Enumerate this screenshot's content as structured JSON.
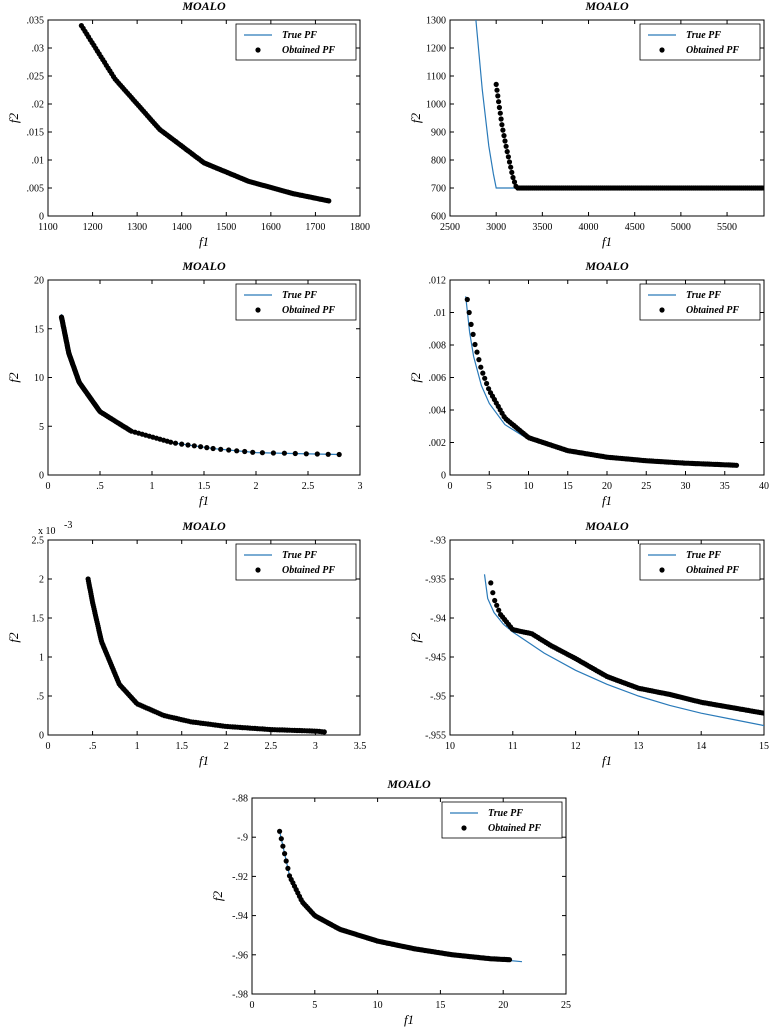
{
  "figure": {
    "caption": ""
  },
  "colors": {
    "true_pf": "#2a7ab9",
    "obtained_pf": "#000000",
    "axis": "#000000"
  },
  "chart_data": [
    {
      "type": "line+scatter",
      "title": "MOALO",
      "xlabel": "f1",
      "ylabel": "f2",
      "xlim": [
        1100,
        1800
      ],
      "ylim": [
        0,
        0.035
      ],
      "xticks": [
        1100,
        1200,
        1300,
        1400,
        1500,
        1600,
        1700,
        1800
      ],
      "yticks": [
        0,
        0.005,
        0.01,
        0.015,
        0.02,
        0.025,
        0.03,
        0.035
      ],
      "legend": [
        "True PF",
        "Obtained PF"
      ],
      "true_pf": {
        "name": "True PF",
        "x": [
          1175,
          1250,
          1350,
          1450,
          1550,
          1650,
          1730
        ],
        "y": [
          0.034,
          0.0245,
          0.0155,
          0.0095,
          0.0062,
          0.004,
          0.0027
        ]
      },
      "obtained_pf": {
        "name": "Obtained PF",
        "x": [
          1175,
          1250,
          1350,
          1450,
          1550,
          1650,
          1730
        ],
        "y": [
          0.034,
          0.0245,
          0.0155,
          0.0095,
          0.0062,
          0.004,
          0.0027
        ]
      }
    },
    {
      "type": "line+scatter",
      "title": "MOALO",
      "xlabel": "f1",
      "ylabel": "f2",
      "xlim": [
        2500,
        5900
      ],
      "ylim": [
        600,
        1300
      ],
      "xticks": [
        2500,
        3000,
        3500,
        4000,
        4500,
        5000,
        5500
      ],
      "yticks": [
        600,
        700,
        800,
        900,
        1000,
        1100,
        1200,
        1300
      ],
      "legend": [
        "True PF",
        "Obtained PF"
      ],
      "true_pf": {
        "name": "True PF",
        "x": [
          2780,
          2850,
          2920,
          2970,
          3000,
          3200
        ],
        "y": [
          1300,
          1050,
          850,
          750,
          700,
          700
        ]
      },
      "obtained_pf": {
        "name": "Obtained PF",
        "x": [
          3000,
          3030,
          3060,
          3100,
          3140,
          3180,
          3220,
          3600,
          4200,
          4800,
          5400,
          5900
        ],
        "y": [
          1070,
          1000,
          930,
          860,
          800,
          740,
          700,
          700,
          700,
          700,
          700,
          700
        ]
      }
    },
    {
      "type": "line+scatter",
      "title": "MOALO",
      "xlabel": "f1",
      "ylabel": "f2",
      "xlim": [
        0,
        3
      ],
      "ylim": [
        0,
        20
      ],
      "xticks": [
        0,
        0.5,
        1,
        1.5,
        2,
        2.5,
        3
      ],
      "yticks": [
        0,
        5,
        10,
        15,
        20
      ],
      "legend": [
        "True PF",
        "Obtained PF"
      ],
      "true_pf": {
        "name": "True PF",
        "x": [
          0.13,
          0.2,
          0.3,
          0.5,
          0.8,
          1.2,
          1.6,
          2.0,
          2.4,
          2.8
        ],
        "y": [
          16.5,
          12.5,
          9.5,
          6.5,
          4.5,
          3.3,
          2.7,
          2.3,
          2.2,
          2.1
        ]
      },
      "obtained_pf": {
        "name": "Obtained PF",
        "x": [
          0.13,
          0.2,
          0.3,
          0.5,
          0.8,
          1.2,
          1.6,
          2.0,
          2.4,
          2.8
        ],
        "y": [
          16.2,
          12.5,
          9.5,
          6.5,
          4.5,
          3.3,
          2.7,
          2.3,
          2.2,
          2.1
        ]
      }
    },
    {
      "type": "line+scatter",
      "title": "MOALO",
      "xlabel": "f1",
      "ylabel": "f2",
      "xlim": [
        0,
        40
      ],
      "ylim": [
        0,
        0.012
      ],
      "xticks": [
        0,
        5,
        10,
        15,
        20,
        25,
        30,
        35,
        40
      ],
      "yticks": [
        0,
        0.002,
        0.004,
        0.006,
        0.008,
        0.01,
        0.012
      ],
      "legend": [
        "True PF",
        "Obtained PF"
      ],
      "true_pf": {
        "name": "True PF",
        "x": [
          2,
          2.5,
          3,
          4,
          5,
          7,
          10,
          15,
          20,
          25,
          30,
          36.5
        ],
        "y": [
          0.011,
          0.0088,
          0.0073,
          0.0055,
          0.0044,
          0.0031,
          0.0022,
          0.0015,
          0.0011,
          0.00088,
          0.00073,
          0.0006
        ]
      },
      "obtained_pf": {
        "name": "Obtained PF",
        "x": [
          2.2,
          2.6,
          3.2,
          4,
          5,
          7,
          10,
          15,
          20,
          25,
          30,
          36.5
        ],
        "y": [
          0.0108,
          0.0095,
          0.008,
          0.0065,
          0.0052,
          0.0035,
          0.0023,
          0.0015,
          0.0011,
          0.00088,
          0.00073,
          0.0006
        ]
      }
    },
    {
      "type": "line+scatter",
      "title": "MOALO",
      "xlabel": "f1",
      "ylabel": "f2",
      "y_multiplier": "x 10",
      "y_exponent": "-3",
      "xlim": [
        0,
        3.5
      ],
      "ylim": [
        0,
        2.5
      ],
      "xticks": [
        0,
        0.5,
        1,
        1.5,
        2,
        2.5,
        3,
        3.5
      ],
      "yticks": [
        0,
        0.5,
        1,
        1.5,
        2,
        2.5
      ],
      "legend": [
        "True PF",
        "Obtained PF"
      ],
      "true_pf": {
        "name": "True PF",
        "x": [
          0.45,
          0.5,
          0.6,
          0.8,
          1.0,
          1.3,
          1.6,
          2.0,
          2.5,
          3.0
        ],
        "y": [
          2.0,
          1.7,
          1.2,
          0.65,
          0.4,
          0.25,
          0.17,
          0.11,
          0.07,
          0.04
        ]
      },
      "obtained_pf": {
        "name": "Obtained PF",
        "x": [
          0.45,
          0.5,
          0.6,
          0.8,
          1.0,
          1.3,
          1.6,
          2.0,
          2.5,
          3.0,
          3.1
        ],
        "y": [
          2.0,
          1.7,
          1.2,
          0.65,
          0.4,
          0.25,
          0.17,
          0.11,
          0.07,
          0.05,
          0.04
        ]
      }
    },
    {
      "type": "line+scatter",
      "title": "MOALO",
      "xlabel": "f1",
      "ylabel": "f2",
      "xlim": [
        10,
        15
      ],
      "ylim": [
        -0.955,
        -0.93
      ],
      "xticks": [
        10,
        11,
        12,
        13,
        14,
        15
      ],
      "yticks": [
        -0.93,
        -0.935,
        -0.94,
        -0.945,
        -0.95,
        -0.955
      ],
      "legend": [
        "True PF",
        "Obtained PF"
      ],
      "true_pf": {
        "name": "True PF",
        "x": [
          10.55,
          10.6,
          10.7,
          10.85,
          11.0,
          11.5,
          12.0,
          12.5,
          13.0,
          13.5,
          14.0,
          14.5,
          15.0
        ],
        "y": [
          -0.9344,
          -0.9375,
          -0.9393,
          -0.9408,
          -0.9418,
          -0.9445,
          -0.9467,
          -0.9485,
          -0.95,
          -0.9512,
          -0.9522,
          -0.953,
          -0.9538
        ]
      },
      "obtained_pf": {
        "name": "Obtained PF",
        "x": [
          10.65,
          10.7,
          10.8,
          10.9,
          11.0,
          11.3,
          11.6,
          12.0,
          12.5,
          13.0,
          13.5,
          14.0,
          14.5,
          15.0
        ],
        "y": [
          -0.9355,
          -0.9375,
          -0.9395,
          -0.9405,
          -0.9415,
          -0.942,
          -0.9435,
          -0.9452,
          -0.9475,
          -0.949,
          -0.9498,
          -0.9508,
          -0.9515,
          -0.9522
        ]
      }
    },
    {
      "type": "line+scatter",
      "title": "MOALO",
      "xlabel": "f1",
      "ylabel": "f2",
      "xlim": [
        0,
        25
      ],
      "ylim": [
        -0.98,
        -0.88
      ],
      "xticks": [
        0,
        5,
        10,
        15,
        20,
        25
      ],
      "yticks": [
        -0.88,
        -0.9,
        -0.92,
        -0.94,
        -0.96,
        -0.98
      ],
      "legend": [
        "True PF",
        "Obtained PF"
      ],
      "true_pf": {
        "name": "True PF",
        "x": [
          2.2,
          3,
          4,
          5,
          7,
          10,
          13,
          16,
          19,
          21.5
        ],
        "y": [
          -0.897,
          -0.92,
          -0.933,
          -0.94,
          -0.947,
          -0.953,
          -0.957,
          -0.96,
          -0.962,
          -0.9635
        ]
      },
      "obtained_pf": {
        "name": "Obtained PF",
        "x": [
          2.2,
          3,
          4,
          5,
          7,
          10,
          13,
          16,
          19,
          20.5
        ],
        "y": [
          -0.897,
          -0.92,
          -0.933,
          -0.94,
          -0.947,
          -0.953,
          -0.957,
          -0.96,
          -0.962,
          -0.9625
        ]
      }
    }
  ]
}
